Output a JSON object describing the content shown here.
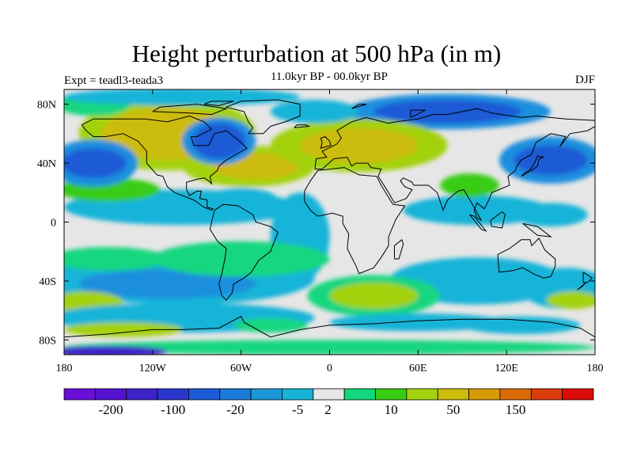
{
  "title": "Height perturbation at 500 hPa (in m)",
  "subtitle": "11.0kyr BP - 00.0kyr BP",
  "experiment": "Expt = teadl3-teada3",
  "season": "DJF",
  "axes": {
    "x_ticks": [
      "180",
      "120W",
      "60W",
      "0",
      "60E",
      "120E",
      "180"
    ],
    "y_ticks": [
      "80N",
      "40N",
      "0",
      "40S",
      "80S"
    ],
    "lon_range": [
      -180,
      180
    ],
    "lat_range": [
      -90,
      90
    ]
  },
  "colorbar": {
    "labels": [
      "-200",
      "-100",
      "-20",
      "-5",
      "2",
      "10",
      "50",
      "150"
    ],
    "colors": [
      "#6a0fd8",
      "#5411d0",
      "#3d22c8",
      "#2a35cc",
      "#1d5ad6",
      "#1c7ad8",
      "#1d97d6",
      "#16b4d8",
      "#e6e6e6",
      "#14d67f",
      "#38cc12",
      "#a3d20f",
      "#ccbc0b",
      "#d99a08",
      "#db6b07",
      "#db3c0b",
      "#dc0a0a"
    ]
  },
  "map_colors": {
    "bg": "#e6e6e6",
    "lightBlue": "#16b4d8",
    "midBlue": "#1c8ede",
    "deepBlue": "#1d5ad6",
    "cyanGreen": "#14d67f",
    "green": "#38cc12",
    "lime": "#a3d20f",
    "mustard": "#ccbc0b",
    "purple": "#3d22c8"
  }
}
